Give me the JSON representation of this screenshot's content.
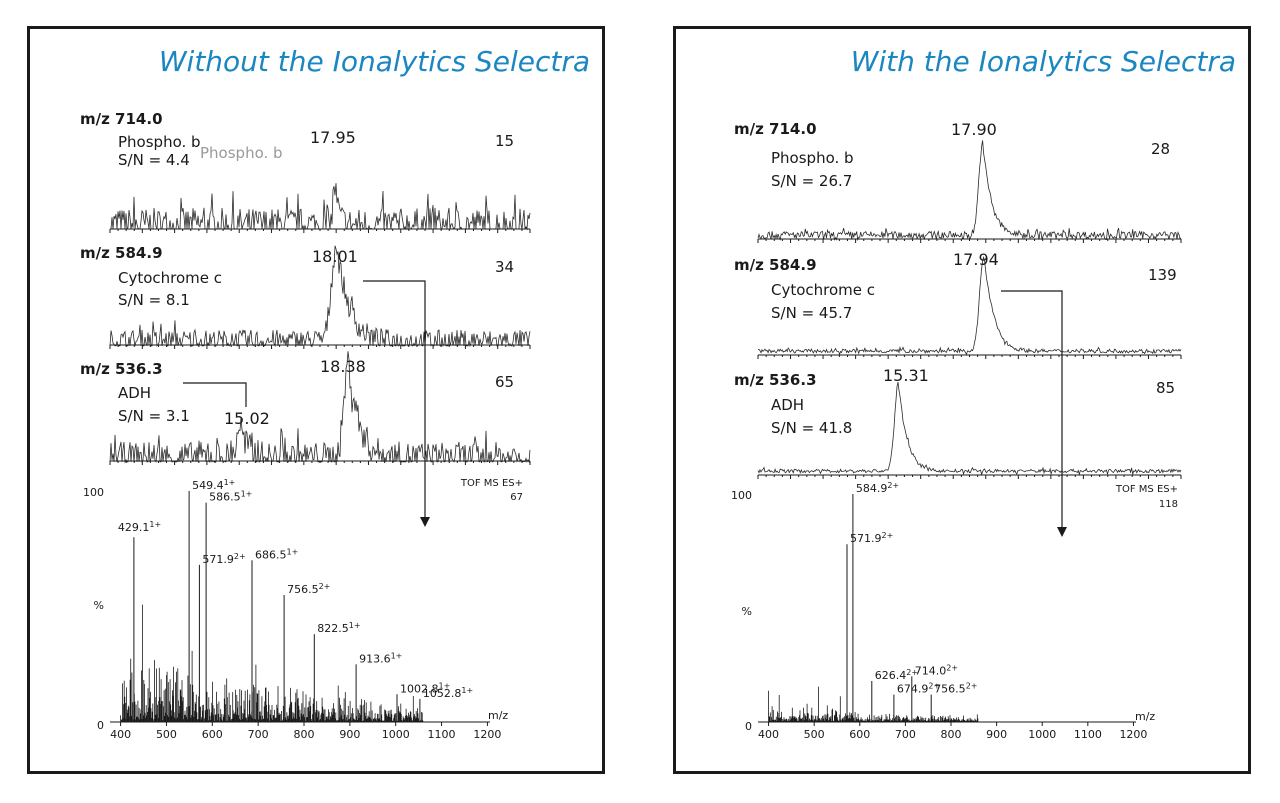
{
  "panels": [
    {
      "title": "Without the Ionalytics Selectra",
      "chromatograms": [
        {
          "mz_label": "m/z 714.0",
          "protein": "Phospho. b",
          "ghost_label": "Phospho. b",
          "sn": "S/N = 4.4",
          "peak_rt": "17.95",
          "scale": "15",
          "peaks": [
            {
              "rt": 17.95,
              "height": 0.55,
              "width": 0.1
            }
          ],
          "noise": 0.22
        },
        {
          "mz_label": "m/z 584.9",
          "protein": "Cytochrome c",
          "ghost_label": "",
          "sn": "S/N = 8.1",
          "peak_rt": "18.01",
          "scale": "34",
          "peaks": [
            {
              "rt": 18.01,
              "height": 1.0,
              "width": 0.35
            }
          ],
          "noise": 0.12
        },
        {
          "mz_label": "m/z 536.3",
          "protein": "ADH",
          "ghost_label": "",
          "sn": "S/N = 3.1",
          "peak_rt": "18.38",
          "scale": "65",
          "second_peak_rt": "15.02",
          "peaks": [
            {
              "rt": 18.38,
              "height": 1.0,
              "width": 0.3
            },
            {
              "rt": 15.02,
              "height": 0.35,
              "width": 0.2
            }
          ],
          "noise": 0.16
        }
      ],
      "spectrum": {
        "instrument": "TOF MS ES+",
        "scale": "67",
        "y_top": "100",
        "y_mid": "%",
        "y_bottom": "0",
        "x_unit": "m/z",
        "x_ticks": [
          "400",
          "500",
          "600",
          "700",
          "800",
          "900",
          "1000",
          "1100",
          "1200"
        ],
        "peaks": [
          {
            "mz": 549.4,
            "intensity": 100,
            "label": "549.4",
            "charge": "1+"
          },
          {
            "mz": 586.5,
            "intensity": 95,
            "label": "586.5",
            "charge": "1+"
          },
          {
            "mz": 429.1,
            "intensity": 80,
            "label": "429.1",
            "charge": "1+"
          },
          {
            "mz": 571.9,
            "intensity": 68,
            "label": "571.9",
            "charge": "2+"
          },
          {
            "mz": 686.5,
            "intensity": 70,
            "label": "686.5",
            "charge": "1+"
          },
          {
            "mz": 756.5,
            "intensity": 55,
            "label": "756.5",
            "charge": "2+"
          },
          {
            "mz": 822.5,
            "intensity": 38,
            "label": "822.5",
            "charge": "1+"
          },
          {
            "mz": 913.6,
            "intensity": 25,
            "label": "913.6",
            "charge": "1+"
          },
          {
            "mz": 1002.8,
            "intensity": 12,
            "label": "1002.8",
            "charge": "1+"
          },
          {
            "mz": 1052.8,
            "intensity": 10,
            "label": "1052.8",
            "charge": "1+"
          }
        ],
        "noise": 0.25,
        "noise_max_mz": 1060
      }
    },
    {
      "title": "With the Ionalytics Selectra",
      "chromatograms": [
        {
          "mz_label": "m/z 714.0",
          "protein": "Phospho. b",
          "ghost_label": "",
          "sn": "S/N = 26.7",
          "peak_rt": "17.90",
          "scale": "28",
          "peaks": [
            {
              "rt": 17.9,
              "height": 1.0,
              "width": 0.25
            }
          ],
          "noise": 0.04
        },
        {
          "mz_label": "m/z 584.9",
          "protein": "Cytochrome c",
          "ghost_label": "",
          "sn": "S/N = 45.7",
          "peak_rt": "17.94",
          "scale": "139",
          "peaks": [
            {
              "rt": 17.94,
              "height": 1.0,
              "width": 0.28
            }
          ],
          "noise": 0.02
        },
        {
          "mz_label": "m/z 536.3",
          "protein": "ADH",
          "ghost_label": "",
          "sn": "S/N = 41.8",
          "peak_rt": "15.31",
          "scale": "85",
          "peaks": [
            {
              "rt": 15.31,
              "height": 1.0,
              "width": 0.25
            }
          ],
          "noise": 0.02
        }
      ],
      "spectrum": {
        "instrument": "TOF MS ES+",
        "scale": "118",
        "y_top": "100",
        "y_mid": "%",
        "y_bottom": "0",
        "x_unit": "m/z",
        "x_ticks": [
          "400",
          "500",
          "600",
          "700",
          "800",
          "900",
          "1000",
          "1100",
          "1200"
        ],
        "peaks": [
          {
            "mz": 584.9,
            "intensity": 100,
            "label": "584.9",
            "charge": "2+"
          },
          {
            "mz": 571.9,
            "intensity": 78,
            "label": "571.9",
            "charge": "2+"
          },
          {
            "mz": 626.4,
            "intensity": 18,
            "label": "626.4",
            "charge": "2+"
          },
          {
            "mz": 714.0,
            "intensity": 20,
            "label": "714.0",
            "charge": "2+"
          },
          {
            "mz": 674.9,
            "intensity": 12,
            "label": "674.9",
            "charge": "2+"
          },
          {
            "mz": 756.5,
            "intensity": 12,
            "label": "756.5",
            "charge": "2+"
          }
        ],
        "noise": 0.06,
        "noise_max_mz": 860
      }
    }
  ],
  "chart_data": [
    {
      "type": "line",
      "title": "Without the Ionalytics Selectra",
      "series": [
        {
          "name": "m/z 714.0",
          "peak_rt": 17.95,
          "relative_scale": 15,
          "sn": 4.4
        },
        {
          "name": "m/z 584.9",
          "peak_rt": 18.01,
          "relative_scale": 34,
          "sn": 8.1
        },
        {
          "name": "m/z 536.3",
          "peak_rt": 18.38,
          "secondary_peak_rt": 15.02,
          "relative_scale": 65,
          "sn": 3.1
        }
      ],
      "mass_spectrum": {
        "type": "bar",
        "xlabel": "m/z",
        "xlim": [
          400,
          1200
        ],
        "ylim": [
          0,
          100
        ],
        "x": [
          549.4,
          586.5,
          429.1,
          571.9,
          686.5,
          756.5,
          822.5,
          913.6,
          1002.8,
          1052.8
        ],
        "values": [
          100,
          95,
          80,
          68,
          70,
          55,
          38,
          25,
          12,
          10
        ]
      }
    },
    {
      "type": "line",
      "title": "With the Ionalytics Selectra",
      "series": [
        {
          "name": "m/z 714.0",
          "peak_rt": 17.9,
          "relative_scale": 28,
          "sn": 26.7
        },
        {
          "name": "m/z 584.9",
          "peak_rt": 17.94,
          "relative_scale": 139,
          "sn": 45.7
        },
        {
          "name": "m/z 536.3",
          "peak_rt": 15.31,
          "relative_scale": 85,
          "sn": 41.8
        }
      ],
      "mass_spectrum": {
        "type": "bar",
        "xlabel": "m/z",
        "xlim": [
          400,
          1200
        ],
        "ylim": [
          0,
          100
        ],
        "x": [
          584.9,
          571.9,
          626.4,
          714.0,
          674.9,
          756.5
        ],
        "values": [
          100,
          78,
          18,
          20,
          12,
          12
        ]
      }
    }
  ]
}
